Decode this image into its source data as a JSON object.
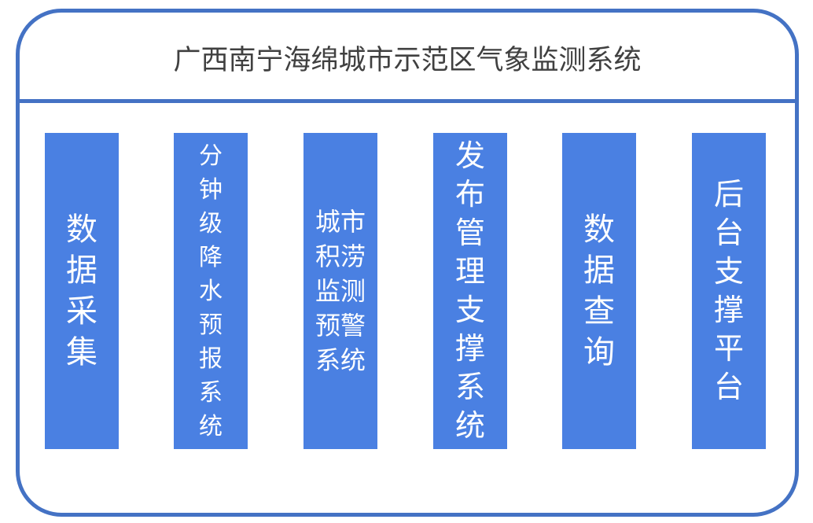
{
  "title": "广西南宁海绵城市示范区气象监测系统",
  "modules": [
    {
      "label": "数据采集"
    },
    {
      "label": "分钟级降水预报系统"
    },
    {
      "label": "城市积涝监测预警系统"
    },
    {
      "label": "发布管理支撑系统"
    },
    {
      "label": "数据查询"
    },
    {
      "label": "后台支撑平台"
    }
  ],
  "colors": {
    "border": "#4472c4",
    "box": "#4a80e2",
    "box_text": "#ffffff"
  }
}
